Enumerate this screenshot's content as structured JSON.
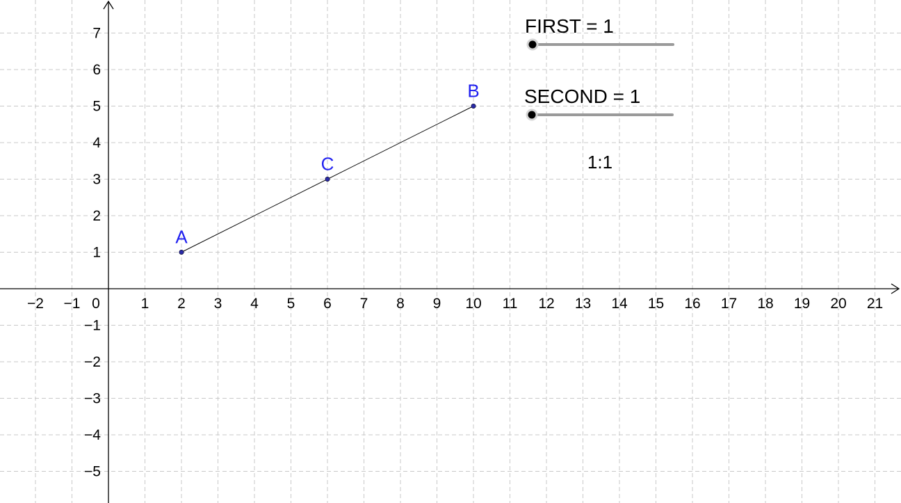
{
  "axes": {
    "x_range": [
      -3,
      21.5
    ],
    "y_range": [
      -5.8,
      7.9
    ],
    "grid": true,
    "x_ticks": [
      -2,
      -1,
      0,
      1,
      2,
      3,
      4,
      5,
      6,
      7,
      8,
      9,
      10,
      11,
      12,
      13,
      14,
      15,
      16,
      17,
      18,
      19,
      20,
      21
    ],
    "y_ticks": [
      -5,
      -4,
      -3,
      -2,
      -1,
      1,
      2,
      3,
      4,
      5,
      6,
      7
    ],
    "origin_label": "0"
  },
  "points": [
    {
      "name": "A",
      "x": 2,
      "y": 1
    },
    {
      "name": "B",
      "x": 10,
      "y": 5
    },
    {
      "name": "C",
      "x": 6,
      "y": 3
    }
  ],
  "segment": {
    "from": "A",
    "to": "B"
  },
  "sliders": [
    {
      "id": "first",
      "label": "FIRST = 1",
      "value": 1,
      "min": 1,
      "max": 10
    },
    {
      "id": "second",
      "label": "SECOND = 1",
      "value": 1,
      "min": 1,
      "max": 10
    }
  ],
  "ratio_text": "1:1",
  "colors": {
    "point": "#1e1ef0",
    "point_dot": "#2a2aa8",
    "grid": "#c8c8c8",
    "axis": "#000000",
    "slider_track": "#9a9a9a",
    "slider_knob": "#000000"
  }
}
